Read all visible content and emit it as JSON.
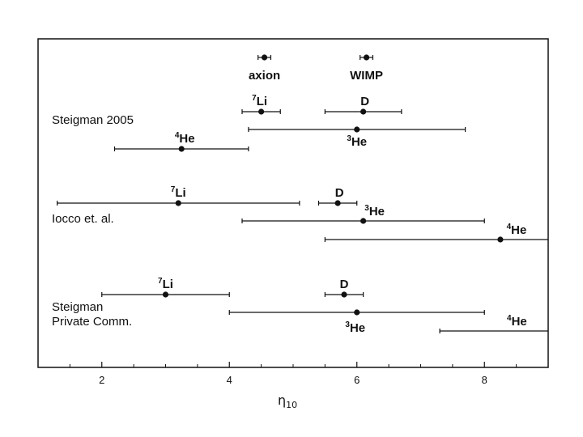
{
  "chart_data": {
    "type": "errorbar",
    "title": "",
    "xlabel": "η",
    "xlabel_sub": "10",
    "ylabel": "",
    "xlim": [
      1.0,
      9.0
    ],
    "x_ticks": [
      2,
      4,
      6,
      8
    ],
    "x_minor_ticks": [
      1.5,
      2.5,
      3,
      3.5,
      4.5,
      5,
      5.5,
      6.5,
      7,
      7.5,
      8.5
    ],
    "grid": false,
    "legend": "none",
    "groups": [
      {
        "name": "Steigman 2005",
        "points": [
          {
            "label": "axion",
            "x": 4.55,
            "xmin": 4.45,
            "xmax": 4.65
          },
          {
            "label": "WIMP",
            "x": 6.15,
            "xmin": 6.05,
            "xmax": 6.25
          },
          {
            "label": "Li",
            "isotope": "7",
            "x": 4.5,
            "xmin": 4.2,
            "xmax": 4.8
          },
          {
            "label": "D",
            "x": 6.1,
            "xmin": 5.5,
            "xmax": 6.7
          },
          {
            "label": "He",
            "isotope": "3",
            "x": 6.0,
            "xmin": 4.3,
            "xmax": 7.7
          },
          {
            "label": "He",
            "isotope": "4",
            "x": 3.25,
            "xmin": 2.2,
            "xmax": 4.3
          }
        ]
      },
      {
        "name": "Iocco et. al.",
        "points": [
          {
            "label": "Li",
            "isotope": "7",
            "x": 3.2,
            "xmin": 1.3,
            "xmax": 5.1
          },
          {
            "label": "D",
            "x": 5.7,
            "xmin": 5.4,
            "xmax": 6.0
          },
          {
            "label": "He",
            "isotope": "3",
            "x": 6.1,
            "xmin": 4.2,
            "xmax": 8.0
          },
          {
            "label": "He",
            "isotope": "4",
            "x": 8.25,
            "xmin": 5.5,
            "xmax": 9.0
          }
        ]
      },
      {
        "name": "Steigman Private Comm.",
        "name_lines": [
          "Steigman",
          "Private Comm."
        ],
        "points": [
          {
            "label": "Li",
            "isotope": "7",
            "x": 3.0,
            "xmin": 2.0,
            "xmax": 4.0
          },
          {
            "label": "D",
            "x": 5.8,
            "xmin": 5.5,
            "xmax": 6.1
          },
          {
            "label": "He",
            "isotope": "3",
            "x": 6.0,
            "xmin": 4.0,
            "xmax": 8.0
          },
          {
            "label": "He",
            "isotope": "4",
            "x": null,
            "xmin": 7.3,
            "xmax": 9.0
          }
        ]
      }
    ]
  }
}
